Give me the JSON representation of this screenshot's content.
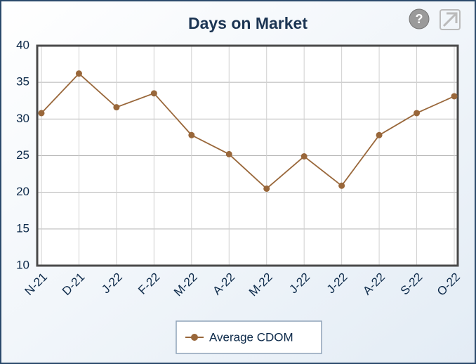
{
  "chart_data": {
    "type": "line",
    "title": "Days on Market",
    "categories": [
      "N-21",
      "D-21",
      "J-22",
      "F-22",
      "M-22",
      "A-22",
      "M-22",
      "J-22",
      "J-22",
      "A-22",
      "S-22",
      "O-22"
    ],
    "series": [
      {
        "name": "Average CDOM",
        "color": "#99673a",
        "values": [
          30.8,
          36.2,
          31.6,
          33.5,
          27.8,
          25.2,
          20.5,
          24.9,
          20.9,
          27.8,
          30.8,
          33.1
        ]
      }
    ],
    "ylim": [
      10,
      40
    ],
    "yticks": [
      10,
      15,
      20,
      25,
      30,
      35,
      40
    ],
    "grid": true,
    "legend": "bottom"
  }
}
